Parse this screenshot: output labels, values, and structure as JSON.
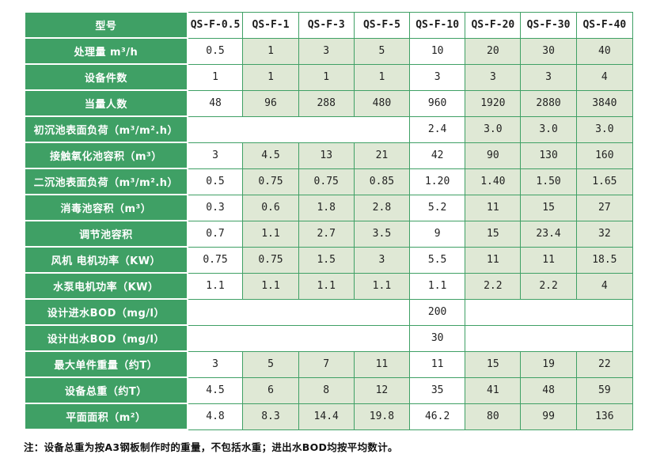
{
  "colors": {
    "green": "#3fa065",
    "tint": "#dfe8d5",
    "white": "#ffffff",
    "value_text": "#222222"
  },
  "table": {
    "header_label": "型号",
    "models": [
      "QS-F-0.5",
      "QS-F-1",
      "QS-F-3",
      "QS-F-5",
      "QS-F-10",
      "QS-F-20",
      "QS-F-30",
      "QS-F-40"
    ],
    "rows": [
      {
        "label": "处理量 m³/h",
        "cells": [
          {
            "t": "0.5"
          },
          {
            "t": "1"
          },
          {
            "t": "3"
          },
          {
            "t": "5"
          },
          {
            "t": "10"
          },
          {
            "t": "20"
          },
          {
            "t": "30"
          },
          {
            "t": "40"
          }
        ]
      },
      {
        "label": "设备件数",
        "cells": [
          {
            "t": "1"
          },
          {
            "t": "1"
          },
          {
            "t": "1"
          },
          {
            "t": "1"
          },
          {
            "t": "3"
          },
          {
            "t": "3"
          },
          {
            "t": "3"
          },
          {
            "t": "4"
          }
        ]
      },
      {
        "label": "当量人数",
        "cells": [
          {
            "t": "48"
          },
          {
            "t": "96"
          },
          {
            "t": "288"
          },
          {
            "t": "480"
          },
          {
            "t": "960"
          },
          {
            "t": "1920"
          },
          {
            "t": "2880"
          },
          {
            "t": "3840"
          }
        ]
      },
      {
        "label": "初沉池表面负荷（m³/m².h）",
        "cells": [
          {
            "t": "",
            "s": 4
          },
          {
            "t": "2.4"
          },
          {
            "t": "3.0"
          },
          {
            "t": "3.0"
          },
          {
            "t": "3.0"
          }
        ]
      },
      {
        "label": "接触氧化池容积（m³）",
        "cells": [
          {
            "t": "3"
          },
          {
            "t": "4.5"
          },
          {
            "t": "13"
          },
          {
            "t": "21"
          },
          {
            "t": "42"
          },
          {
            "t": "90"
          },
          {
            "t": "130"
          },
          {
            "t": "160"
          }
        ]
      },
      {
        "label": "二沉池表面负荷（m³/m².h）",
        "cells": [
          {
            "t": "0.5"
          },
          {
            "t": "0.75"
          },
          {
            "t": "0.75"
          },
          {
            "t": "0.85"
          },
          {
            "t": "1.20"
          },
          {
            "t": "1.40"
          },
          {
            "t": "1.50"
          },
          {
            "t": "1.65"
          }
        ]
      },
      {
        "label": "消毒池容积（m³）",
        "cells": [
          {
            "t": "0.3"
          },
          {
            "t": "0.6"
          },
          {
            "t": "1.8"
          },
          {
            "t": "2.8"
          },
          {
            "t": "5.2"
          },
          {
            "t": "11"
          },
          {
            "t": "15"
          },
          {
            "t": "27"
          }
        ]
      },
      {
        "label": "调节池容积",
        "cells": [
          {
            "t": "0.7"
          },
          {
            "t": "1.1"
          },
          {
            "t": "2.7"
          },
          {
            "t": "3.5"
          },
          {
            "t": "9"
          },
          {
            "t": "15"
          },
          {
            "t": "23.4"
          },
          {
            "t": "32"
          }
        ]
      },
      {
        "label": "风机 电机功率（KW）",
        "cells": [
          {
            "t": "0.75"
          },
          {
            "t": "0.75"
          },
          {
            "t": "1.5"
          },
          {
            "t": "3"
          },
          {
            "t": "5.5"
          },
          {
            "t": "11"
          },
          {
            "t": "11"
          },
          {
            "t": "18.5"
          }
        ]
      },
      {
        "label": "水泵电机功率（KW）",
        "cells": [
          {
            "t": "1.1"
          },
          {
            "t": "1.1"
          },
          {
            "t": "1.1"
          },
          {
            "t": "1.1"
          },
          {
            "t": "1.1"
          },
          {
            "t": "2.2"
          },
          {
            "t": "2.2"
          },
          {
            "t": "4"
          }
        ]
      },
      {
        "label": "设计进水BOD（mg/l）",
        "cells": [
          {
            "t": "",
            "s": 4
          },
          {
            "t": "200"
          },
          {
            "t": "",
            "s": 3
          }
        ]
      },
      {
        "label": "设计出水BOD（mg/l）",
        "cells": [
          {
            "t": "",
            "s": 4
          },
          {
            "t": "30"
          },
          {
            "t": "",
            "s": 3
          }
        ]
      },
      {
        "label": "最大单件重量（约T）",
        "cells": [
          {
            "t": "3"
          },
          {
            "t": "5"
          },
          {
            "t": "7"
          },
          {
            "t": "11"
          },
          {
            "t": "11"
          },
          {
            "t": "15"
          },
          {
            "t": "19"
          },
          {
            "t": "22"
          }
        ]
      },
      {
        "label": "设备总重（约T）",
        "cells": [
          {
            "t": "4.5"
          },
          {
            "t": "6"
          },
          {
            "t": "8"
          },
          {
            "t": "12"
          },
          {
            "t": "35"
          },
          {
            "t": "41"
          },
          {
            "t": "48"
          },
          {
            "t": "59"
          }
        ]
      },
      {
        "label": "平面面积（m²）",
        "cells": [
          {
            "t": "4.8"
          },
          {
            "t": "8.3"
          },
          {
            "t": "14.4"
          },
          {
            "t": "19.8"
          },
          {
            "t": "46.2"
          },
          {
            "t": "80"
          },
          {
            "t": "99"
          },
          {
            "t": "136"
          }
        ]
      }
    ]
  },
  "note": "注：设备总重为按A3钢板制作时的重量，不包括水重；进出水BOD均按平均数计。"
}
